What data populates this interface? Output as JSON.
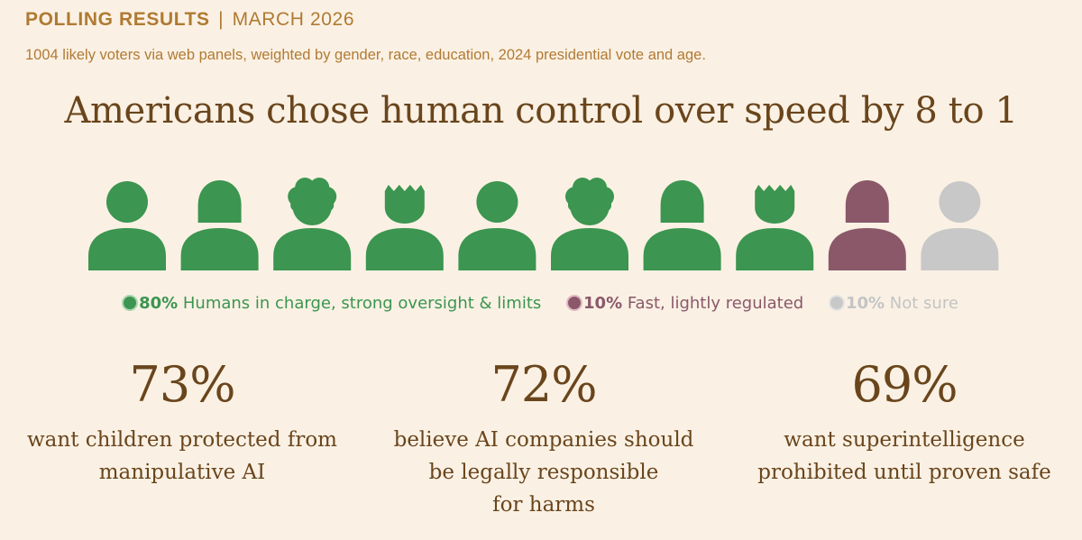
{
  "header": {
    "label": "POLLING RESULTS",
    "separator": "|",
    "date": "MARCH 2026"
  },
  "subtitle": "1004 likely voters via web panels, weighted by gender, race, education, 2024 presidential vote and age.",
  "title": "Americans chose human control over speed by 8 to 1",
  "chart_data": {
    "type": "pictograph",
    "title": "Americans chose human control over speed by 8 to 1",
    "icon_count": 10,
    "categories": [
      "Humans in charge, strong oversight & limits",
      "Fast, lightly regulated",
      "Not sure"
    ],
    "values": [
      80,
      10,
      10
    ],
    "unit": "%",
    "icons": [
      {
        "category": 0,
        "style": "round"
      },
      {
        "category": 0,
        "style": "bob"
      },
      {
        "category": 0,
        "style": "curly"
      },
      {
        "category": 0,
        "style": "spiky"
      },
      {
        "category": 0,
        "style": "round"
      },
      {
        "category": 0,
        "style": "curly"
      },
      {
        "category": 0,
        "style": "bob"
      },
      {
        "category": 0,
        "style": "spiky"
      },
      {
        "category": 1,
        "style": "bob"
      },
      {
        "category": 2,
        "style": "round"
      }
    ],
    "legend": [
      {
        "pct": "80%",
        "label": "Humans in charge, strong oversight & limits",
        "color": "#3c9550"
      },
      {
        "pct": "10%",
        "label": "Fast, lightly regulated",
        "color": "#8b586a"
      },
      {
        "pct": "10%",
        "label": "Not sure",
        "color": "#c8c8c8"
      }
    ],
    "legend_text_colors": [
      "#3c9550",
      "#8b586a",
      "#c4c4c4"
    ],
    "dot_outline_colors": [
      "#a9d6b0",
      "#e0b9c6",
      "#e4e4e4"
    ]
  },
  "stats": [
    {
      "number": "73%",
      "lines": [
        "want children protected from",
        "manipulative AI"
      ]
    },
    {
      "number": "72%",
      "lines": [
        "believe AI companies should",
        "be legally responsible",
        "for harms"
      ]
    },
    {
      "number": "69%",
      "lines": [
        "want superintelligence",
        "prohibited until proven safe"
      ]
    }
  ]
}
